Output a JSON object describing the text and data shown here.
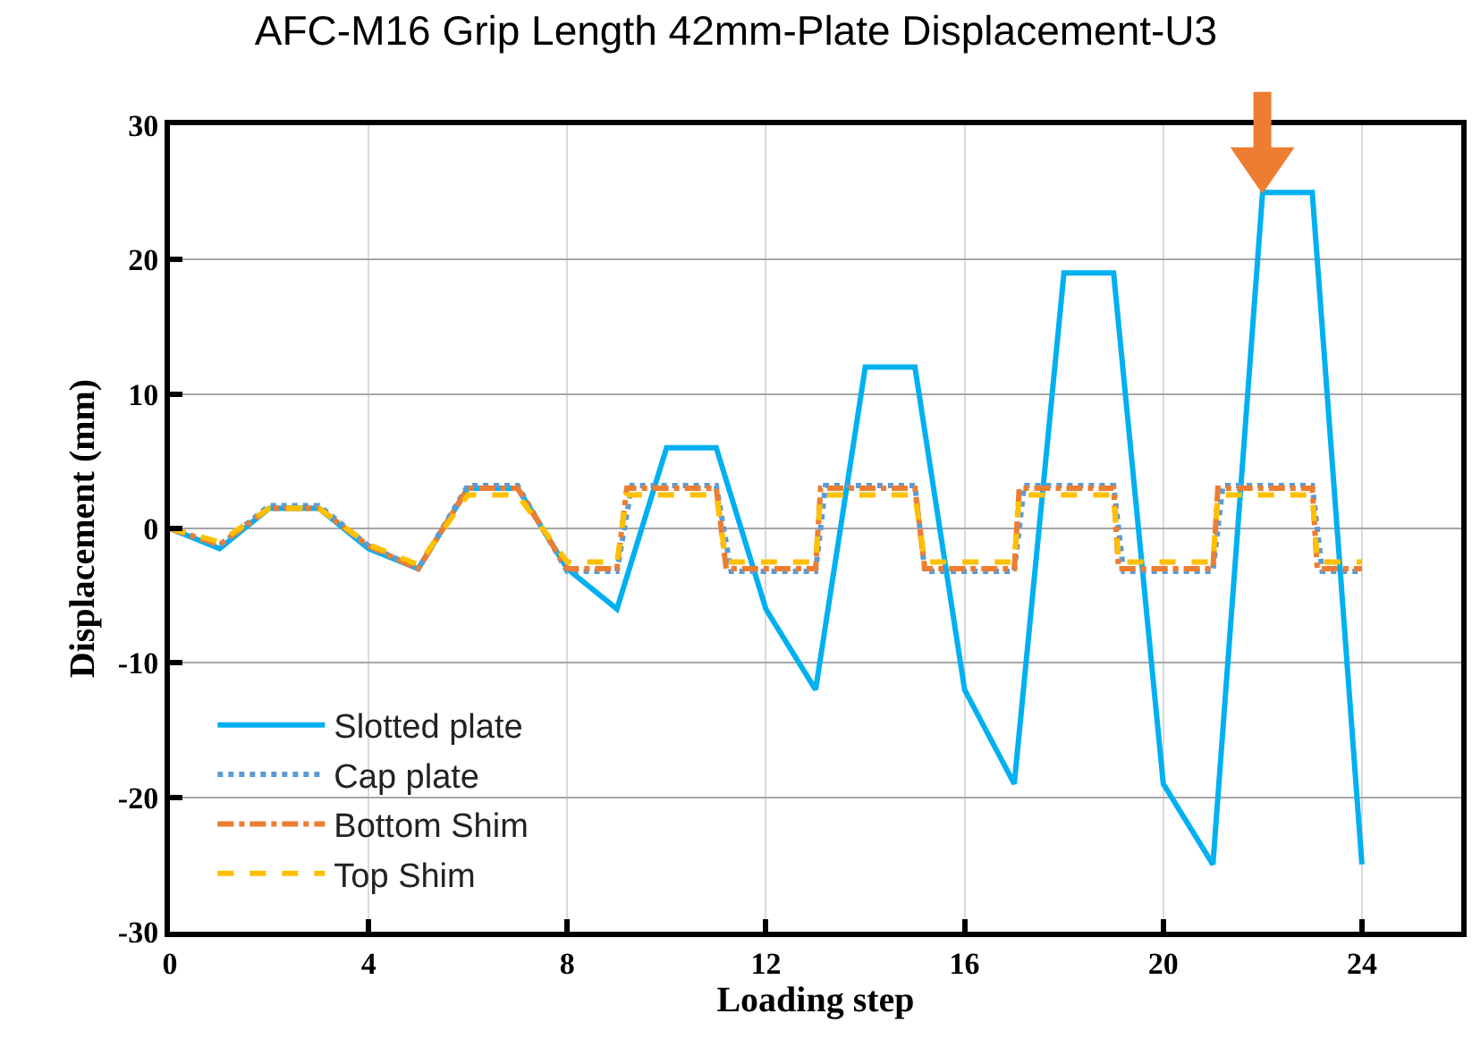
{
  "chart_data": {
    "type": "line",
    "title": "AFC-M16 Grip Length 42mm-Plate Displacement-U3",
    "xlabel": "Loading step",
    "ylabel": "Displacement (mm)",
    "xlim": [
      0,
      26
    ],
    "xticks": [
      0,
      4,
      8,
      12,
      16,
      20,
      24
    ],
    "ylim": [
      -30,
      30
    ],
    "yticks": [
      -30,
      -20,
      -10,
      0,
      10,
      20,
      30
    ],
    "grid": true,
    "legend": "bottom left",
    "marker": "none",
    "series": [
      {
        "name": "Slotted plate",
        "color": "#00b0f0",
        "line_style": "solid",
        "x": [
          0,
          1,
          2,
          3,
          4,
          5,
          6,
          7,
          8,
          9,
          10,
          11,
          12,
          13,
          14,
          15,
          16,
          17,
          18,
          19,
          20,
          21,
          22,
          23,
          24
        ],
        "values": [
          0,
          -1.5,
          1.5,
          1.5,
          -1.5,
          -3,
          3,
          3,
          -3,
          -6,
          6,
          6,
          -6,
          -12,
          12,
          12,
          -12,
          -19,
          19,
          19,
          -19,
          -25,
          25,
          25,
          -25
        ]
      },
      {
        "name": "Cap plate",
        "color": "#5b9bd5",
        "line_style": "dotted",
        "x": [
          0,
          1,
          2,
          3,
          4,
          5,
          6,
          7,
          8,
          9,
          9.3,
          11,
          11.3,
          13,
          13.2,
          15,
          15.2,
          17,
          17.2,
          19,
          19.2,
          21,
          21.2,
          23,
          23.2,
          24
        ],
        "values": [
          0,
          -1.3,
          1.7,
          1.7,
          -1.3,
          -3,
          3.2,
          3.2,
          -3.2,
          -3.2,
          3.2,
          3.2,
          -3.2,
          -3.2,
          3.2,
          3.2,
          -3.2,
          -3.2,
          3.2,
          3.2,
          -3.2,
          -3.2,
          3.2,
          3.2,
          -3.2,
          -3.2
        ]
      },
      {
        "name": "Bottom Shim",
        "color": "#ed7d31",
        "line_style": "dashdot",
        "x": [
          0,
          1,
          2,
          3,
          4,
          5,
          6,
          7,
          8,
          9,
          9.2,
          11,
          11.2,
          13,
          13.1,
          15,
          15.2,
          17,
          17.1,
          19,
          19.1,
          21,
          21.1,
          23,
          23.1,
          24
        ],
        "values": [
          0,
          -1.2,
          1.5,
          1.5,
          -1.3,
          -3,
          3,
          3,
          -3,
          -3,
          3,
          3,
          -3,
          -3,
          3,
          3,
          -3,
          -3,
          3,
          3,
          -3,
          -3,
          3,
          3,
          -3,
          -3
        ]
      },
      {
        "name": "Top Shim",
        "color": "#ffc000",
        "line_style": "dashed",
        "x": [
          0,
          1,
          2,
          3,
          4,
          5,
          6,
          7,
          8,
          9,
          9.2,
          11,
          11.2,
          13,
          13.1,
          15,
          15.2,
          17,
          17.1,
          19,
          19.1,
          21,
          21.1,
          23,
          23.1,
          24
        ],
        "values": [
          0,
          -1,
          1.5,
          1.5,
          -1.2,
          -2.7,
          2.5,
          2.5,
          -2.5,
          -2.5,
          2.5,
          2.5,
          -2.5,
          -2.5,
          2.5,
          2.5,
          -2.5,
          -2.5,
          2.5,
          2.5,
          -2.5,
          -2.5,
          2.5,
          2.5,
          -2.5,
          -2.5
        ]
      }
    ]
  }
}
